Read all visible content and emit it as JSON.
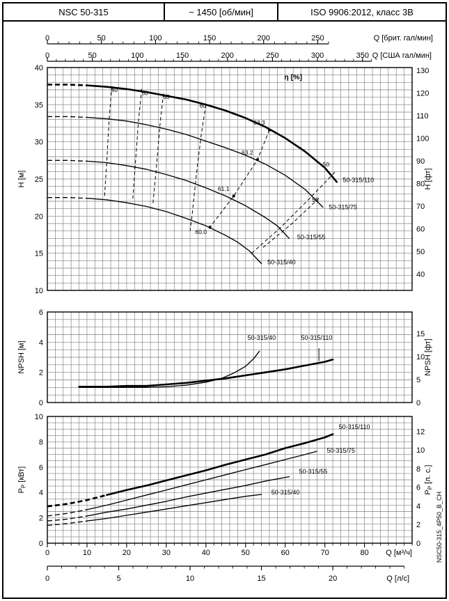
{
  "header": {
    "model": "NSC 50-315",
    "speed": "~ 1450 [об/мин]",
    "standard": "ISO 9906:2012, класс 3В"
  },
  "doc_code": "NSC50-315_4P50_B_CH",
  "colors": {
    "ink": "#000000",
    "grid": "#7d7d7d",
    "paper": "#ffffff"
  },
  "axes": {
    "top_imp": {
      "label": "Q [брит. гал/мин]",
      "ticks": [
        0,
        50,
        100,
        150,
        200,
        250
      ],
      "minor_step": 10,
      "max": 260,
      "m3h_per_unit": 0.27277
    },
    "top_us": {
      "label": "Q [США гал/мин]",
      "ticks": [
        0,
        50,
        100,
        150,
        200,
        250,
        300,
        350
      ],
      "minor_step": 10,
      "max": 360,
      "m3h_per_unit": 0.22712
    },
    "bottom_m3h": {
      "label": "Q [м³/ч]",
      "ticks": [
        0,
        10,
        20,
        30,
        40,
        50,
        60,
        70,
        80
      ],
      "minor_step": 2,
      "max": 92,
      "m3h_per_unit": 1
    },
    "bottom_ls": {
      "label": "Q [л/с]",
      "ticks": [
        0,
        5,
        10,
        15,
        20
      ],
      "minor_step": 1,
      "max": 25,
      "m3h_per_unit": 3.6
    }
  },
  "chart_data": [
    {
      "id": "hq",
      "type": "line",
      "title": "Q-H curves NSC 50-315 at ~1450 rpm",
      "x": {
        "unit": "м³/ч",
        "min": 0,
        "max": 92,
        "grid_step": 2
      },
      "y_left": {
        "label": "H [м]",
        "min": 10,
        "max": 40,
        "grid_step": 1,
        "ticks": [
          10,
          15,
          20,
          25,
          30,
          35,
          40
        ]
      },
      "y_right": {
        "label": "H [фт]",
        "ticks": [
          40,
          50,
          60,
          70,
          80,
          90,
          100,
          110,
          120,
          130
        ],
        "m_per_unit": 0.3048
      },
      "series": [
        {
          "name": "50-315/110",
          "thick": true,
          "dash_until": 8,
          "label_at": [
            74.5,
            24.6
          ],
          "points": [
            [
              0,
              37.7
            ],
            [
              5,
              37.7
            ],
            [
              10,
              37.6
            ],
            [
              15,
              37.4
            ],
            [
              20,
              37.1
            ],
            [
              25,
              36.7
            ],
            [
              30,
              36.2
            ],
            [
              35,
              35.7
            ],
            [
              40,
              35.0
            ],
            [
              45,
              34.2
            ],
            [
              50,
              33.2
            ],
            [
              55,
              32.0
            ],
            [
              60,
              30.5
            ],
            [
              65,
              28.7
            ],
            [
              70,
              26.5
            ],
            [
              73,
              24.6
            ]
          ]
        },
        {
          "name": "50-315/75",
          "thick": false,
          "dash_until": 8,
          "label_at": [
            71.0,
            20.9
          ],
          "points": [
            [
              0,
              33.4
            ],
            [
              5,
              33.4
            ],
            [
              10,
              33.3
            ],
            [
              15,
              33.1
            ],
            [
              20,
              32.8
            ],
            [
              25,
              32.3
            ],
            [
              30,
              31.7
            ],
            [
              35,
              31.0
            ],
            [
              40,
              30.1
            ],
            [
              45,
              29.2
            ],
            [
              50,
              28.2
            ],
            [
              55,
              27.0
            ],
            [
              60,
              25.5
            ],
            [
              65,
              23.6
            ],
            [
              69.5,
              21.2
            ]
          ]
        },
        {
          "name": "50-315/55",
          "thick": false,
          "dash_until": 8,
          "label_at": [
            63.0,
            16.9
          ],
          "points": [
            [
              0,
              27.5
            ],
            [
              5,
              27.5
            ],
            [
              10,
              27.4
            ],
            [
              15,
              27.2
            ],
            [
              20,
              26.8
            ],
            [
              25,
              26.3
            ],
            [
              30,
              25.6
            ],
            [
              35,
              24.8
            ],
            [
              40,
              23.8
            ],
            [
              45,
              22.7
            ],
            [
              50,
              21.4
            ],
            [
              55,
              19.8
            ],
            [
              58,
              18.7
            ],
            [
              61,
              17.0
            ]
          ]
        },
        {
          "name": "50-315/40",
          "thick": false,
          "dash_until": 8,
          "label_at": [
            55.5,
            13.5
          ],
          "points": [
            [
              0,
              22.5
            ],
            [
              5,
              22.5
            ],
            [
              10,
              22.4
            ],
            [
              15,
              22.2
            ],
            [
              20,
              21.8
            ],
            [
              25,
              21.3
            ],
            [
              30,
              20.6
            ],
            [
              35,
              19.7
            ],
            [
              40,
              18.7
            ],
            [
              45,
              17.4
            ],
            [
              48,
              16.5
            ],
            [
              51,
              15.3
            ],
            [
              54,
              13.6
            ]
          ]
        }
      ],
      "efficiency": {
        "title": "η [%]",
        "title_at": [
          62,
          38.4
        ],
        "lines": [
          {
            "label": "40",
            "label_at": [
              16.9,
              36.7
            ],
            "points": [
              [
                16.3,
                37.5
              ],
              [
                15.6,
                33.2
              ],
              [
                15.0,
                27.4
              ],
              [
                14.4,
                22.4
              ]
            ]
          },
          {
            "label": "50",
            "label_at": [
              24.6,
              36.3
            ],
            "points": [
              [
                23.8,
                37.1
              ],
              [
                23.0,
                32.9
              ],
              [
                22.2,
                27.0
              ],
              [
                21.5,
                22.0
              ]
            ]
          },
          {
            "label": "55",
            "label_at": [
              30.0,
              35.8
            ],
            "points": [
              [
                29.3,
                36.5
              ],
              [
                28.4,
                32.3
              ],
              [
                27.5,
                26.5
              ],
              [
                26.6,
                21.5
              ]
            ]
          },
          {
            "label": "60",
            "label_at": [
              39.2,
              34.6
            ],
            "points": [
              [
                40.0,
                35.0
              ],
              [
                38.8,
                30.9
              ],
              [
                37.5,
                25.2
              ],
              [
                36.5,
                20.1
              ],
              [
                36.0,
                18.0
              ]
            ]
          },
          {
            "label": "50",
            "label_at": [
              70.3,
              26.7
            ],
            "points": [
              [
                72.5,
                25.9
              ],
              [
                66.0,
                22.3
              ],
              [
                58.5,
                18.3
              ],
              [
                51.5,
                15.0
              ]
            ]
          },
          {
            "label": "55",
            "label_at": [
              67.6,
              21.9
            ],
            "points": [
              [
                68.5,
                22.4
              ],
              [
                61.5,
                18.9
              ],
              [
                54.0,
                15.6
              ]
            ]
          },
          {
            "label": "",
            "label_at": [
              0,
              0
            ],
            "points": [
              [
                56,
                31.6
              ],
              [
                53,
                27.6
              ],
              [
                47,
                22.7
              ],
              [
                41,
                18.5
              ]
            ]
          }
        ],
        "bep_points": [
          {
            "value": "63.3",
            "at": [
              56,
              31.6
            ],
            "label_at": [
              54.9,
              32.3
            ]
          },
          {
            "value": "63.2",
            "at": [
              53,
              27.6
            ],
            "label_at": [
              51.9,
              28.3
            ]
          },
          {
            "value": "61.1",
            "at": [
              47,
              22.7
            ],
            "label_at": [
              45.9,
              23.4
            ]
          },
          {
            "value": "60.0",
            "at": [
              41,
              18.5
            ],
            "label_at": [
              40.2,
              17.6
            ]
          }
        ]
      }
    },
    {
      "id": "npsh",
      "type": "line",
      "y_left": {
        "label": "NPSH [м]",
        "min": 0,
        "max": 6,
        "grid_step": 0.5,
        "ticks": [
          0,
          2,
          4,
          6
        ]
      },
      "y_right": {
        "label": "NPSH [фт]",
        "ticks": [
          0,
          5,
          10,
          15
        ],
        "m_per_unit": 0.3048
      },
      "series": [
        {
          "name": "50-315/40",
          "thick": false,
          "label_at": [
            50.5,
            4.15
          ],
          "points": [
            [
              8,
              1.0
            ],
            [
              15,
              1.0
            ],
            [
              20,
              1.0
            ],
            [
              25,
              1.0
            ],
            [
              30,
              1.05
            ],
            [
              35,
              1.15
            ],
            [
              40,
              1.35
            ],
            [
              44,
              1.6
            ],
            [
              47,
              1.95
            ],
            [
              50,
              2.4
            ],
            [
              52,
              2.9
            ],
            [
              53.5,
              3.4
            ]
          ]
        },
        {
          "name": "50-315/110",
          "thick": true,
          "label_at": [
            64.0,
            4.15
          ],
          "leader": [
            [
              68.5,
              3.6
            ],
            [
              68.5,
              2.75
            ]
          ],
          "points": [
            [
              8,
              1.05
            ],
            [
              15,
              1.05
            ],
            [
              20,
              1.1
            ],
            [
              25,
              1.1
            ],
            [
              30,
              1.2
            ],
            [
              35,
              1.3
            ],
            [
              40,
              1.45
            ],
            [
              45,
              1.6
            ],
            [
              50,
              1.8
            ],
            [
              55,
              2.0
            ],
            [
              60,
              2.2
            ],
            [
              65,
              2.45
            ],
            [
              70,
              2.7
            ],
            [
              72,
              2.85
            ]
          ]
        }
      ]
    },
    {
      "id": "power",
      "type": "line",
      "y_left": {
        "label_parts": {
          "pre": "P",
          "sub": "P",
          "post": " [кВт]"
        },
        "min": 0,
        "max": 10,
        "grid_step": 0.5,
        "ticks": [
          0,
          2,
          4,
          6,
          8,
          10
        ]
      },
      "y_right": {
        "label_parts": {
          "pre": "P",
          "sub": "P",
          "post": " [л. с.]"
        },
        "ticks": [
          0,
          2,
          4,
          6,
          8,
          10,
          12
        ],
        "kw_per_unit": 0.7355
      },
      "series": [
        {
          "name": "50-315/110",
          "thick": true,
          "dash_until": 10,
          "label_at": [
            73.5,
            9.0
          ],
          "points": [
            [
              0,
              2.9
            ],
            [
              5,
              3.1
            ],
            [
              10,
              3.4
            ],
            [
              15,
              3.8
            ],
            [
              20,
              4.2
            ],
            [
              25,
              4.55
            ],
            [
              30,
              4.95
            ],
            [
              35,
              5.35
            ],
            [
              40,
              5.75
            ],
            [
              45,
              6.2
            ],
            [
              50,
              6.6
            ],
            [
              55,
              7.0
            ],
            [
              60,
              7.5
            ],
            [
              65,
              7.9
            ],
            [
              70,
              8.35
            ],
            [
              72,
              8.6
            ]
          ]
        },
        {
          "name": "50-315/75",
          "thick": false,
          "dash_until": 8,
          "label_at": [
            70.5,
            7.15
          ],
          "points": [
            [
              0,
              2.15
            ],
            [
              5,
              2.35
            ],
            [
              10,
              2.65
            ],
            [
              15,
              3.0
            ],
            [
              20,
              3.4
            ],
            [
              25,
              3.8
            ],
            [
              30,
              4.2
            ],
            [
              35,
              4.6
            ],
            [
              40,
              5.0
            ],
            [
              45,
              5.4
            ],
            [
              50,
              5.8
            ],
            [
              55,
              6.2
            ],
            [
              60,
              6.6
            ],
            [
              65,
              7.0
            ],
            [
              68,
              7.25
            ]
          ]
        },
        {
          "name": "50-315/55",
          "thick": false,
          "dash_until": 8,
          "label_at": [
            63.5,
            5.5
          ],
          "points": [
            [
              0,
              1.75
            ],
            [
              5,
              1.9
            ],
            [
              10,
              2.15
            ],
            [
              15,
              2.45
            ],
            [
              20,
              2.7
            ],
            [
              25,
              3.0
            ],
            [
              30,
              3.3
            ],
            [
              35,
              3.65
            ],
            [
              40,
              3.95
            ],
            [
              45,
              4.25
            ],
            [
              50,
              4.55
            ],
            [
              55,
              4.9
            ],
            [
              61,
              5.25
            ]
          ]
        },
        {
          "name": "50-315/40",
          "thick": false,
          "dash_until": 8,
          "label_at": [
            56.5,
            3.85
          ],
          "points": [
            [
              0,
              1.4
            ],
            [
              5,
              1.55
            ],
            [
              10,
              1.75
            ],
            [
              15,
              1.95
            ],
            [
              20,
              2.2
            ],
            [
              25,
              2.45
            ],
            [
              30,
              2.7
            ],
            [
              35,
              2.95
            ],
            [
              40,
              3.2
            ],
            [
              45,
              3.45
            ],
            [
              50,
              3.7
            ],
            [
              54,
              3.85
            ]
          ]
        }
      ]
    }
  ]
}
